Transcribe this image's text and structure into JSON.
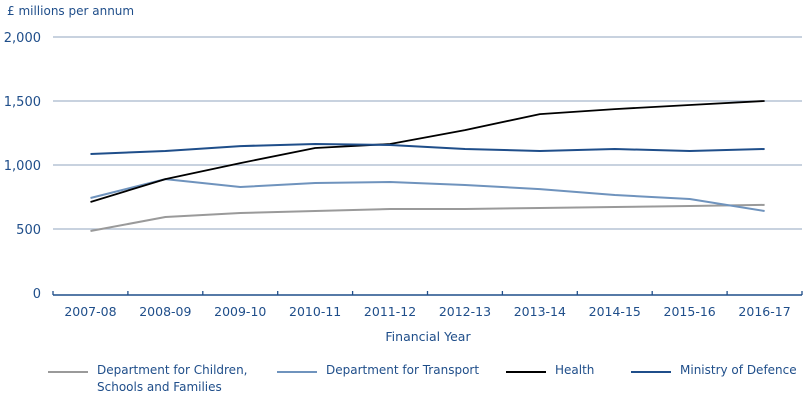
{
  "chart_data": {
    "type": "line",
    "title": "",
    "ylabel": "£ millions per annum",
    "xlabel": "Financial Year",
    "ylim": [
      0,
      2000
    ],
    "yticks": [
      0,
      500,
      1000,
      1500,
      2000
    ],
    "ytick_labels": [
      "0",
      "500",
      "1,000",
      "1,500",
      "2,000"
    ],
    "grid": true,
    "legend_position": "bottom",
    "categories": [
      "2007-08",
      "2008-09",
      "2009-10",
      "2010-11",
      "2011-12",
      "2012-13",
      "2013-14",
      "2014-15",
      "2015-16",
      "2016-17"
    ],
    "series": [
      {
        "name": "Department for Children,\nSchools and Families",
        "color": "#9a9a9a",
        "values": [
          484,
          594,
          625,
          641,
          656,
          656,
          664,
          672,
          680,
          688
        ]
      },
      {
        "name": "Department for Transport",
        "color": "#6f93bd",
        "values": [
          742,
          890,
          828,
          859,
          867,
          844,
          812,
          766,
          734,
          641
        ]
      },
      {
        "name": "Health",
        "color": "#000000",
        "values": [
          711,
          890,
          1015,
          1133,
          1164,
          1273,
          1398,
          1437,
          1469,
          1500
        ]
      },
      {
        "name": "Ministry of Defence",
        "color": "#1f4e8a",
        "values": [
          1086,
          1109,
          1148,
          1164,
          1156,
          1125,
          1109,
          1125,
          1109,
          1125
        ]
      }
    ]
  },
  "colors": {
    "text": "#1f4e8a",
    "grid": "#a8b8cc",
    "axis": "#1f4e8a"
  }
}
